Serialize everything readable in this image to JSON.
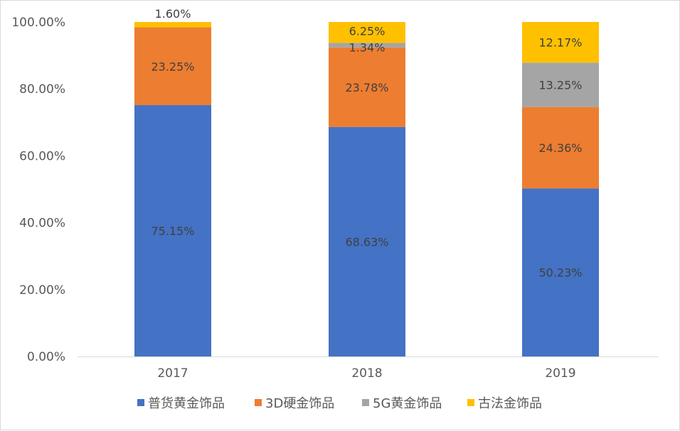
{
  "chart_data": {
    "type": "bar",
    "stacked": true,
    "categories": [
      "2017",
      "2018",
      "2019"
    ],
    "series": [
      {
        "name": "普货黄金饰品",
        "values": [
          75.15,
          68.63,
          50.23
        ],
        "labels": [
          "75.15%",
          "68.63%",
          "50.23%"
        ],
        "color": "#4472C4"
      },
      {
        "name": "3D硬金饰品",
        "values": [
          23.25,
          23.78,
          24.36
        ],
        "labels": [
          "23.25%",
          "23.78%",
          "24.36%"
        ],
        "color": "#ED7D31"
      },
      {
        "name": "5G黄金饰品",
        "values": [
          0,
          1.34,
          13.25
        ],
        "labels": [
          "",
          "1.34%",
          "13.25%"
        ],
        "color": "#A5A5A5"
      },
      {
        "name": "古法金饰品",
        "values": [
          1.6,
          6.25,
          12.17
        ],
        "labels": [
          "1.60%",
          "6.25%",
          "12.17%"
        ],
        "color": "#FFC000"
      }
    ],
    "y_ticks": [
      "0.00%",
      "20.00%",
      "40.00%",
      "60.00%",
      "80.00%",
      "100.00%"
    ],
    "ylim": [
      0,
      100
    ],
    "grid": false,
    "legend_position": "bottom",
    "title": "",
    "xlabel": "",
    "ylabel": ""
  }
}
